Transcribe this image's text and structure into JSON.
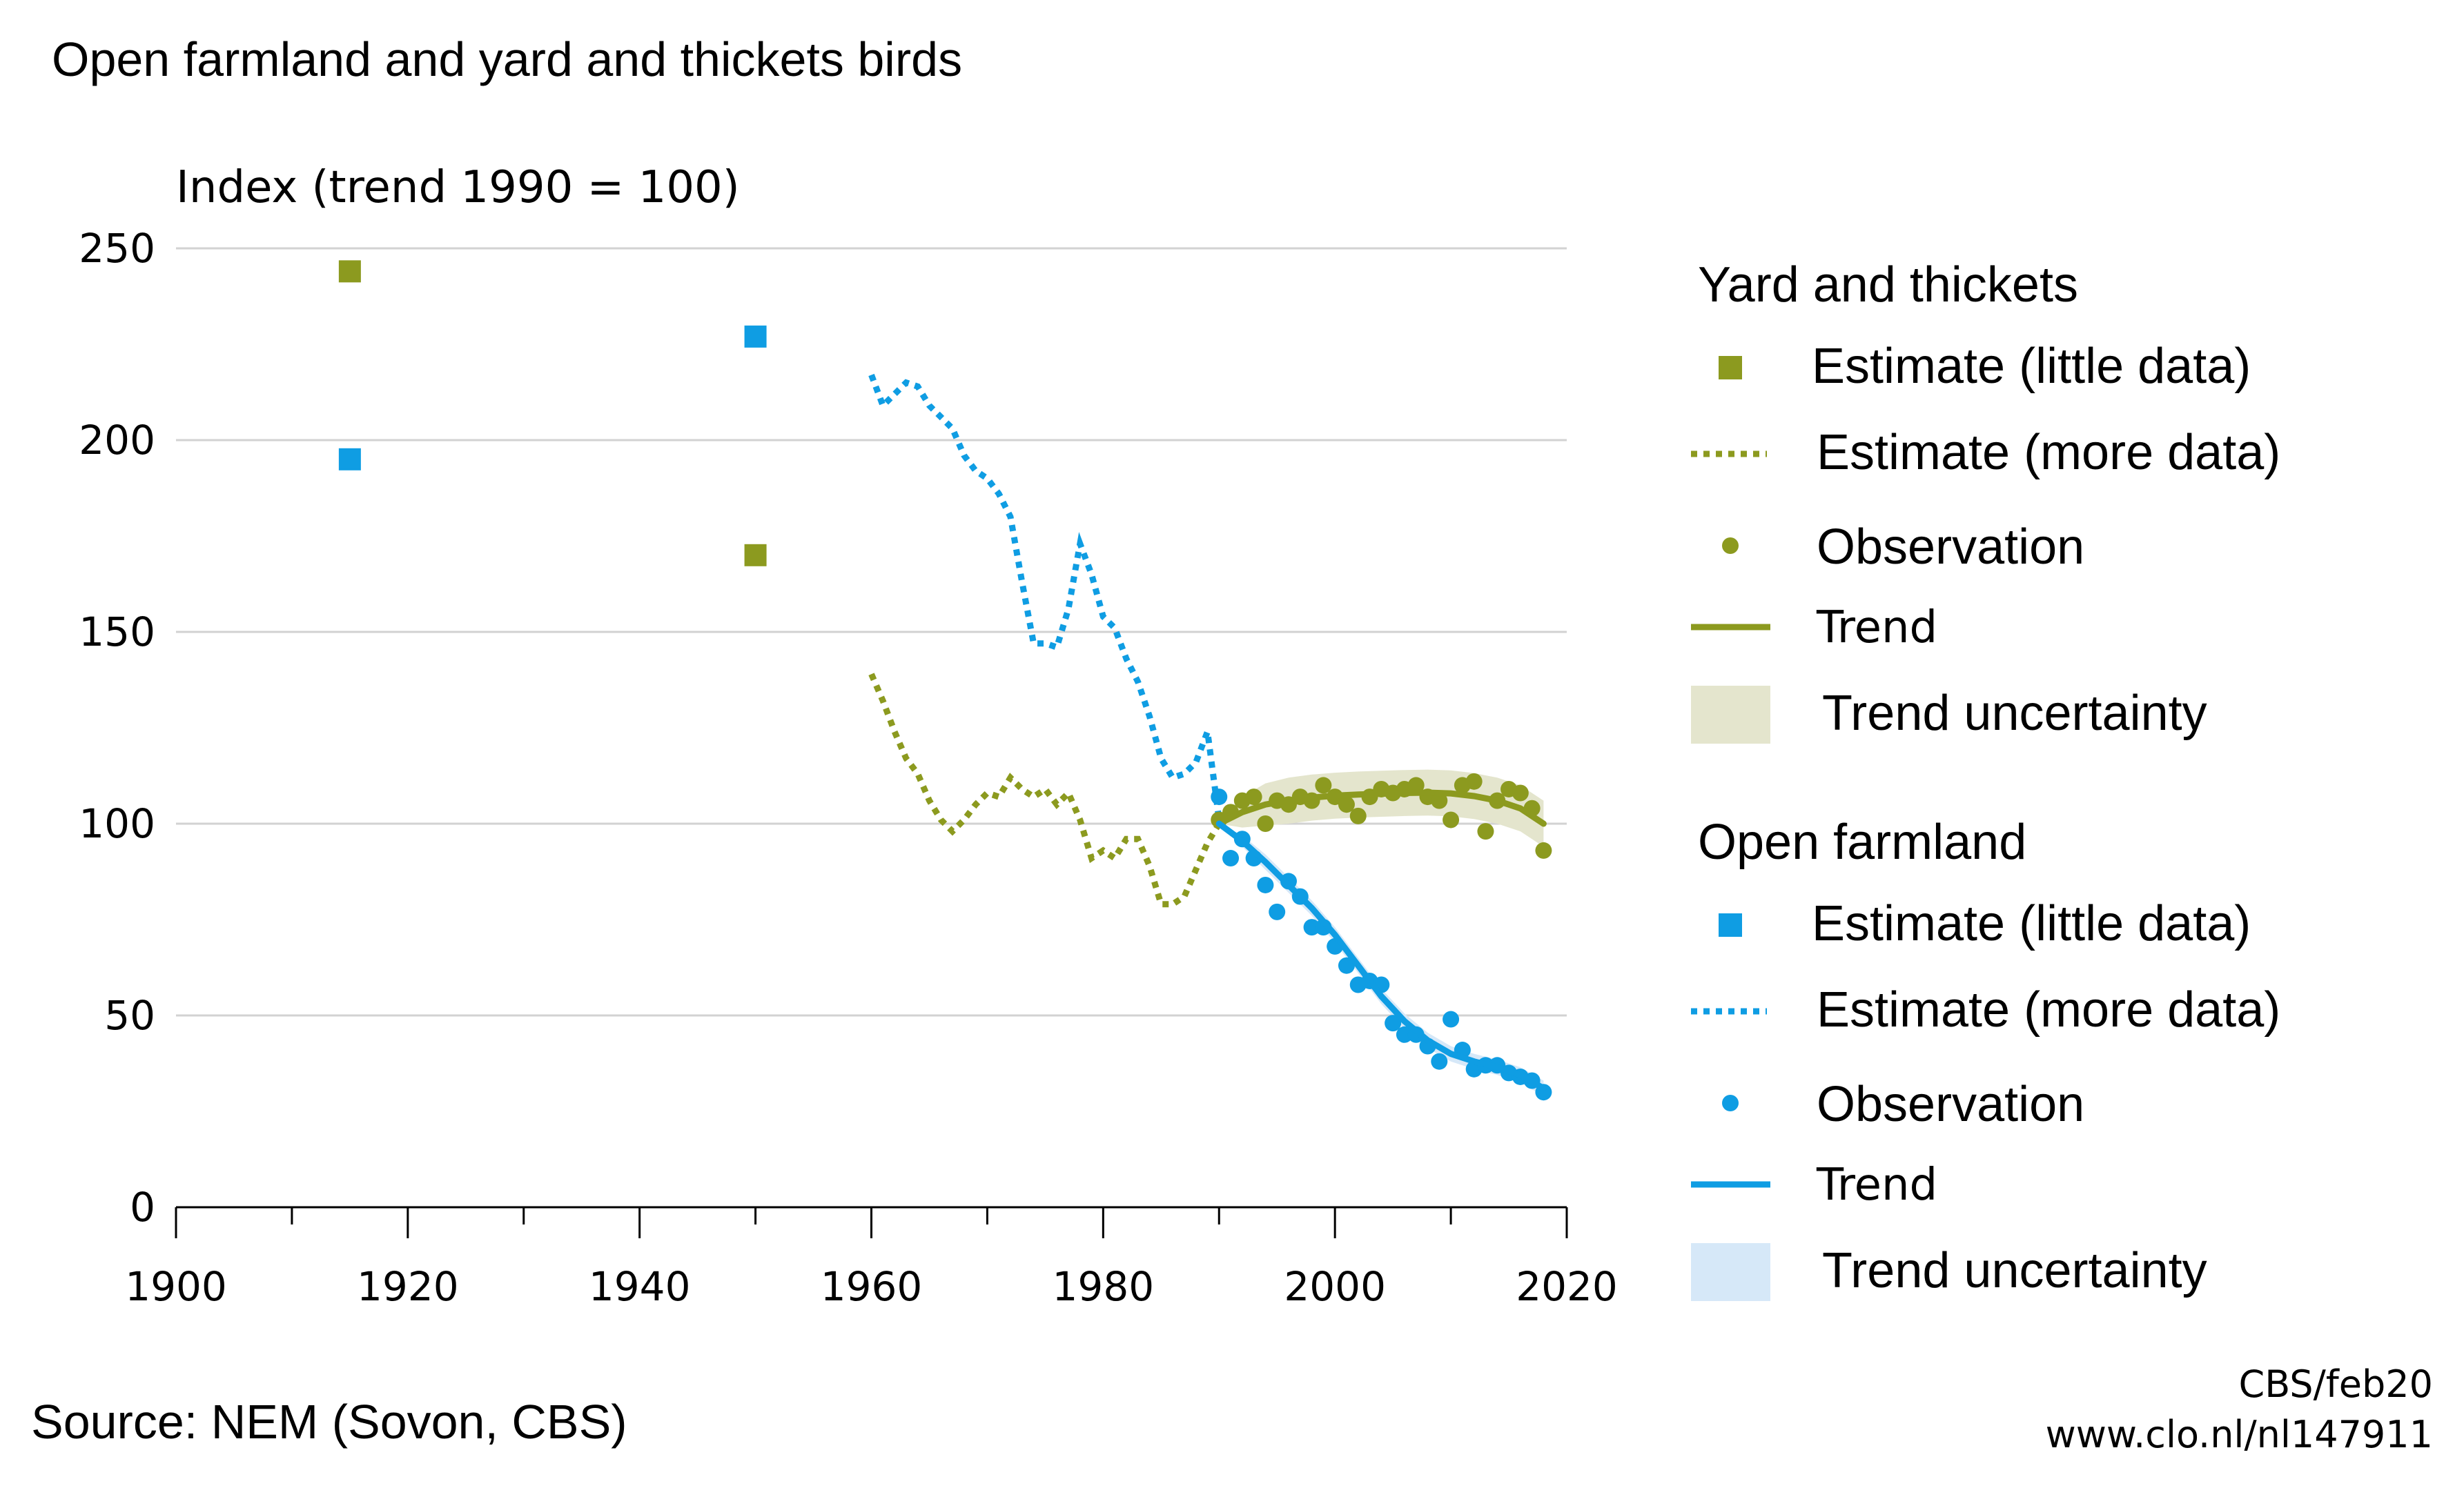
{
  "chart_data": {
    "type": "line",
    "title": "Open farmland and yard and thickets birds",
    "ylabel": "Index (trend 1990 = 100)",
    "xlabel": "",
    "xlim": [
      1900,
      2020
    ],
    "ylim": [
      0,
      250
    ],
    "x_ticks": [
      1900,
      1920,
      1940,
      1960,
      1980,
      2000,
      2020
    ],
    "y_ticks": [
      0,
      50,
      100,
      150,
      200,
      250
    ],
    "grid": true,
    "legend_position": "right",
    "colors": {
      "yard": "#8c9a1f",
      "farm": "#0f9de3",
      "yard_band": "#e4e5cd",
      "farm_band": "#d6e8f8"
    },
    "groups": [
      {
        "key": "yard",
        "heading": "Yard and thickets",
        "color": "#8c9a1f",
        "band_color": "#e4e5cd",
        "estimate_little": {
          "label": "Estimate (little data)",
          "x": [
            1915,
            1950
          ],
          "y": [
            244,
            170
          ]
        },
        "estimate_more": {
          "label": "Estimate (more data)",
          "x": [
            1960,
            1961,
            1962,
            1963,
            1964,
            1965,
            1966,
            1967,
            1968,
            1969,
            1970,
            1971,
            1972,
            1973,
            1974,
            1975,
            1976,
            1977,
            1978,
            1979,
            1980,
            1981,
            1982,
            1983,
            1984,
            1985,
            1986,
            1987,
            1988,
            1989,
            1990
          ],
          "y": [
            139,
            132,
            124,
            117,
            113,
            106,
            101,
            98,
            101,
            105,
            108,
            107,
            112,
            109,
            107,
            109,
            105,
            108,
            101,
            91,
            93,
            91,
            96,
            96,
            89,
            79,
            79,
            81,
            88,
            95,
            100
          ]
        },
        "observation": {
          "label": "Observation",
          "x": [
            1990,
            1991,
            1992,
            1993,
            1994,
            1995,
            1996,
            1997,
            1998,
            1999,
            2000,
            2001,
            2002,
            2003,
            2004,
            2005,
            2006,
            2007,
            2008,
            2009,
            2010,
            2011,
            2012,
            2013,
            2014,
            2015,
            2016,
            2017,
            2018
          ],
          "y": [
            101,
            103,
            106,
            107,
            100,
            106,
            105,
            107,
            106,
            110,
            107,
            105,
            102,
            107,
            109,
            108,
            109,
            110,
            107,
            106,
            101,
            110,
            111,
            98,
            106,
            109,
            108,
            104,
            93
          ]
        },
        "trend": {
          "label": "Trend",
          "x": [
            1990,
            1992,
            1994,
            1996,
            1998,
            2000,
            2002,
            2004,
            2006,
            2008,
            2010,
            2012,
            2014,
            2016,
            2018
          ],
          "y": [
            100,
            103,
            105,
            106,
            106.8,
            107.3,
            107.6,
            107.8,
            108,
            108.1,
            107.9,
            107.2,
            106,
            104,
            100
          ]
        },
        "uncertainty": {
          "label": "Trend uncertainty",
          "x": [
            1990,
            1992,
            1994,
            1996,
            1998,
            2000,
            2002,
            2004,
            2006,
            2008,
            2010,
            2012,
            2014,
            2016,
            2018
          ],
          "lower": [
            100,
            99,
            99.5,
            100,
            100.8,
            101.3,
            101.6,
            101.8,
            102,
            102.1,
            101.9,
            101.2,
            100,
            98,
            94
          ],
          "upper": [
            100,
            107,
            110.5,
            112,
            112.8,
            113.3,
            113.6,
            113.8,
            114,
            114.1,
            113.9,
            113.2,
            112,
            110,
            106
          ]
        }
      },
      {
        "key": "farm",
        "heading": "Open farmland",
        "color": "#0f9de3",
        "band_color": "#d6e8f8",
        "estimate_little": {
          "label": "Estimate (little data)",
          "x": [
            1915,
            1950
          ],
          "y": [
            195,
            227
          ]
        },
        "estimate_more": {
          "label": "Estimate (more data)",
          "x": [
            1960,
            1961,
            1962,
            1963,
            1964,
            1965,
            1966,
            1967,
            1968,
            1969,
            1970,
            1971,
            1972,
            1973,
            1974,
            1975,
            1976,
            1977,
            1978,
            1979,
            1980,
            1981,
            1982,
            1983,
            1984,
            1985,
            1986,
            1987,
            1988,
            1989,
            1990
          ],
          "y": [
            217,
            209,
            212,
            215,
            214,
            209,
            206,
            203,
            196,
            192,
            190,
            186,
            180,
            163,
            147,
            147,
            146,
            156,
            173,
            165,
            154,
            151,
            143,
            137,
            128,
            117,
            112,
            113,
            116,
            124,
            101
          ]
        },
        "observation": {
          "label": "Observation",
          "x": [
            1990,
            1991,
            1992,
            1993,
            1994,
            1995,
            1996,
            1997,
            1998,
            1999,
            2000,
            2001,
            2002,
            2003,
            2004,
            2005,
            2006,
            2007,
            2008,
            2009,
            2010,
            2011,
            2012,
            2013,
            2014,
            2015,
            2016,
            2017,
            2018
          ],
          "y": [
            107,
            91,
            96,
            91,
            84,
            77,
            85,
            81,
            73,
            73,
            68,
            63,
            58,
            59,
            58,
            48,
            45,
            45,
            42,
            38,
            49,
            41,
            36,
            37,
            37,
            35,
            34,
            33,
            30
          ]
        },
        "trend": {
          "label": "Trend",
          "x": [
            1990,
            1992,
            1994,
            1996,
            1998,
            2000,
            2002,
            2004,
            2006,
            2008,
            2010,
            2012,
            2014,
            2016,
            2018
          ],
          "y": [
            100,
            95.5,
            90,
            84,
            78,
            71,
            63,
            55,
            48.5,
            43.5,
            40,
            38,
            36.5,
            34.5,
            31
          ]
        },
        "uncertainty": {
          "label": "Trend uncertainty",
          "x": [
            1990,
            1992,
            1994,
            1996,
            1998,
            2000,
            2002,
            2004,
            2006,
            2008,
            2010,
            2012,
            2014,
            2016,
            2018
          ],
          "lower": [
            100,
            94,
            88,
            82,
            76,
            69,
            61,
            53,
            46.5,
            41.5,
            38,
            36,
            34.5,
            32.5,
            29
          ],
          "upper": [
            100,
            97,
            92,
            86,
            80,
            73,
            65,
            57,
            50.5,
            45.5,
            42,
            40,
            38.5,
            36.5,
            33
          ]
        }
      }
    ]
  },
  "footer": {
    "source": "Source: NEM (Sovon, CBS)",
    "credit_line1": "CBS/feb20",
    "credit_line2": "www.clo.nl/nl147911"
  }
}
